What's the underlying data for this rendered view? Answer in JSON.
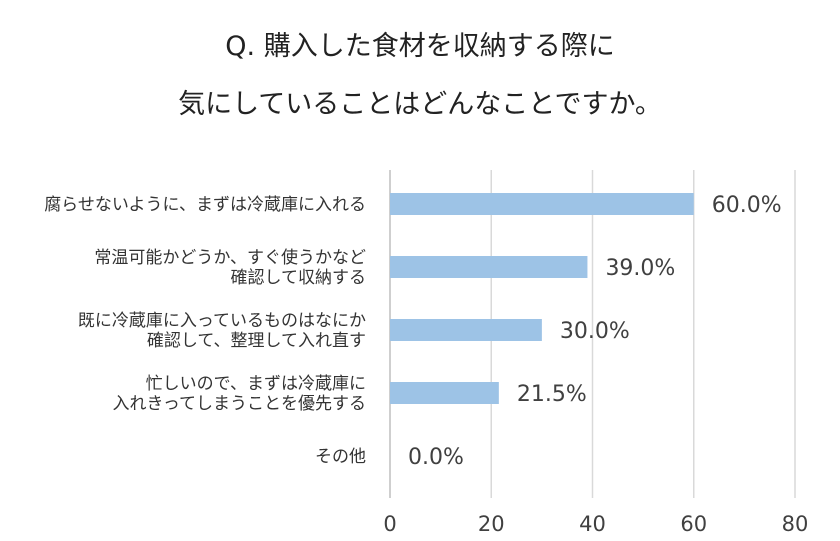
{
  "chart_data": {
    "type": "bar",
    "orientation": "horizontal",
    "title_lines": [
      "Q. 購入した食材を収納する際に",
      "気にしていることはどんなことですか。"
    ],
    "categories": [
      [
        "腐らせないように、まずは冷蔵庫に入れる"
      ],
      [
        "常温可能かどうか、すぐ使うかなど",
        "確認して収納する"
      ],
      [
        "既に冷蔵庫に入っているものはなにか",
        "確認して、整理して入れ直す"
      ],
      [
        "忙しいので、まずは冷蔵庫に",
        "入れきってしまうことを優先する"
      ],
      [
        "その他"
      ]
    ],
    "values": [
      60.0,
      39.0,
      30.0,
      21.5,
      0.0
    ],
    "value_labels": [
      "60.0%",
      "39.0%",
      "30.0%",
      "21.5%",
      "0.0%"
    ],
    "xlim": [
      0,
      80
    ],
    "xticks": [
      "0",
      "20",
      "40",
      "60",
      "80"
    ],
    "grid": "vertical",
    "bar_color": "#9dc3e6"
  }
}
